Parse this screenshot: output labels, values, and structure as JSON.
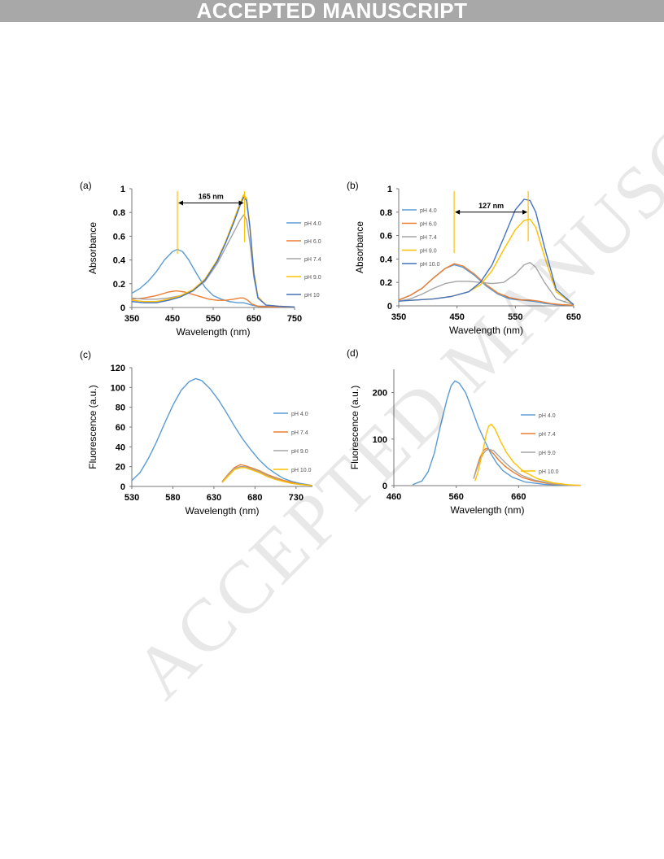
{
  "banner": "ACCEPTED MANUSCRIPT",
  "watermark": "ACCEPTED MANUSCRIPT",
  "colors": {
    "blue": "#5b9bd5",
    "orange": "#ed7d31",
    "gray": "#a5a5a5",
    "yellow": "#ffc000",
    "darkblue": "#4472c4"
  },
  "chart_data": [
    {
      "panel": "(a)",
      "type": "line",
      "xlabel": "Wavelength (nm)",
      "ylabel": "Absorbance",
      "xlim": [
        350,
        750
      ],
      "ylim": [
        0,
        1
      ],
      "xticks": [
        "350",
        "450",
        "550",
        "650",
        "750"
      ],
      "yticks": [
        "0",
        "0.2",
        "0.4",
        "0.6",
        "0.8",
        "1"
      ],
      "annotation": {
        "text": "165 nm",
        "x1": 462,
        "x2": 627,
        "y": 0.88
      },
      "legend": [
        "pH 4.0",
        "pH 6.0",
        "pH 7.4",
        "pH 9.0",
        "pH 10"
      ],
      "series": [
        {
          "name": "pH 4.0",
          "color": "blue",
          "x": [
            350,
            370,
            390,
            410,
            430,
            450,
            462,
            475,
            490,
            510,
            530,
            550,
            570,
            590,
            610,
            625,
            635,
            645,
            660,
            690,
            720,
            750
          ],
          "y": [
            0.12,
            0.16,
            0.22,
            0.3,
            0.4,
            0.47,
            0.49,
            0.47,
            0.4,
            0.28,
            0.17,
            0.1,
            0.07,
            0.05,
            0.04,
            0.04,
            0.03,
            0.02,
            0.01,
            0.01,
            0.005,
            0.005
          ]
        },
        {
          "name": "pH 6.0",
          "color": "orange",
          "x": [
            350,
            380,
            410,
            440,
            460,
            480,
            500,
            520,
            540,
            560,
            580,
            600,
            615,
            625,
            635,
            645,
            660,
            690,
            720,
            750
          ],
          "y": [
            0.07,
            0.08,
            0.1,
            0.13,
            0.14,
            0.13,
            0.11,
            0.09,
            0.07,
            0.06,
            0.06,
            0.07,
            0.08,
            0.08,
            0.06,
            0.03,
            0.01,
            0.005,
            0.005,
            0.005
          ]
        },
        {
          "name": "pH 7.4",
          "color": "gray",
          "x": [
            350,
            380,
            410,
            440,
            470,
            500,
            530,
            560,
            580,
            600,
            615,
            625,
            632,
            640,
            650,
            660,
            680,
            710,
            750
          ],
          "y": [
            0.08,
            0.07,
            0.07,
            0.08,
            0.1,
            0.14,
            0.22,
            0.37,
            0.5,
            0.63,
            0.73,
            0.78,
            0.74,
            0.55,
            0.25,
            0.08,
            0.02,
            0.01,
            0.005
          ]
        },
        {
          "name": "pH 9.0",
          "color": "yellow",
          "x": [
            350,
            380,
            410,
            440,
            470,
            500,
            530,
            560,
            580,
            600,
            615,
            625,
            632,
            640,
            650,
            660,
            680,
            710,
            750
          ],
          "y": [
            0.06,
            0.05,
            0.05,
            0.07,
            0.1,
            0.15,
            0.24,
            0.4,
            0.55,
            0.73,
            0.87,
            0.95,
            0.92,
            0.7,
            0.3,
            0.09,
            0.02,
            0.01,
            0.005
          ]
        },
        {
          "name": "pH 10",
          "color": "darkblue",
          "x": [
            350,
            380,
            410,
            440,
            470,
            500,
            530,
            560,
            580,
            600,
            615,
            625,
            632,
            640,
            650,
            660,
            680,
            710,
            750
          ],
          "y": [
            0.05,
            0.04,
            0.04,
            0.06,
            0.09,
            0.14,
            0.23,
            0.39,
            0.54,
            0.71,
            0.85,
            0.93,
            0.9,
            0.68,
            0.28,
            0.08,
            0.02,
            0.01,
            0.005
          ]
        }
      ]
    },
    {
      "panel": "(b)",
      "type": "line",
      "xlabel": "Wavelength (nm)",
      "ylabel": "Absorbance",
      "xlim": [
        350,
        650
      ],
      "ylim": [
        0,
        1
      ],
      "xticks": [
        "350",
        "450",
        "550",
        "650"
      ],
      "yticks": [
        "0",
        "0.2",
        "0.4",
        "0.6",
        "0.8",
        "1"
      ],
      "annotation": {
        "text": "127 nm",
        "x1": 445,
        "x2": 572,
        "y": 0.8
      },
      "legend": [
        "pH 4.0",
        "pH 6.0",
        "pH 7.4",
        "pH 9.0",
        "pH 10.0"
      ],
      "series": [
        {
          "name": "pH 4.0",
          "color": "blue",
          "x": [
            350,
            370,
            390,
            410,
            430,
            445,
            460,
            480,
            500,
            520,
            540,
            560,
            580,
            600,
            620,
            650
          ],
          "y": [
            0.05,
            0.09,
            0.15,
            0.24,
            0.32,
            0.35,
            0.33,
            0.26,
            0.17,
            0.1,
            0.06,
            0.05,
            0.04,
            0.02,
            0.01,
            0.005
          ]
        },
        {
          "name": "pH 6.0",
          "color": "orange",
          "x": [
            350,
            370,
            390,
            410,
            430,
            445,
            460,
            480,
            500,
            520,
            540,
            560,
            575,
            590,
            610,
            630,
            650
          ],
          "y": [
            0.05,
            0.09,
            0.15,
            0.24,
            0.32,
            0.36,
            0.34,
            0.27,
            0.18,
            0.11,
            0.07,
            0.05,
            0.05,
            0.04,
            0.02,
            0.01,
            0.005
          ]
        },
        {
          "name": "pH 7.4",
          "color": "gray",
          "x": [
            350,
            370,
            390,
            410,
            430,
            450,
            470,
            490,
            510,
            530,
            550,
            565,
            575,
            585,
            600,
            620,
            650
          ],
          "y": [
            0.04,
            0.06,
            0.1,
            0.15,
            0.19,
            0.21,
            0.21,
            0.2,
            0.19,
            0.2,
            0.27,
            0.35,
            0.37,
            0.33,
            0.2,
            0.06,
            0.01
          ]
        },
        {
          "name": "pH 9.0",
          "color": "yellow",
          "x": [
            350,
            380,
            410,
            440,
            470,
            490,
            510,
            530,
            550,
            565,
            575,
            585,
            600,
            620,
            650
          ],
          "y": [
            0.04,
            0.05,
            0.06,
            0.08,
            0.12,
            0.18,
            0.3,
            0.48,
            0.65,
            0.73,
            0.74,
            0.67,
            0.42,
            0.12,
            0.01
          ]
        },
        {
          "name": "pH 10.0",
          "color": "darkblue",
          "x": [
            350,
            380,
            410,
            440,
            470,
            490,
            510,
            530,
            550,
            565,
            575,
            585,
            600,
            620,
            650
          ],
          "y": [
            0.04,
            0.05,
            0.06,
            0.08,
            0.12,
            0.2,
            0.35,
            0.58,
            0.82,
            0.91,
            0.9,
            0.8,
            0.5,
            0.14,
            0.01
          ]
        }
      ]
    },
    {
      "panel": "(c)",
      "type": "line",
      "xlabel": "Wavelength (nm)",
      "ylabel": "Fluorescence (a.u.)",
      "xlim": [
        530,
        750
      ],
      "ylim": [
        0,
        120
      ],
      "xticks": [
        "530",
        "580",
        "630",
        "680",
        "730"
      ],
      "yticks": [
        "0",
        "20",
        "40",
        "60",
        "80",
        "100",
        "120"
      ],
      "legend": [
        "pH 4.0",
        "pH 7.4",
        "pH 9.0",
        "pH 10.0"
      ],
      "series": [
        {
          "name": "pH 4.0",
          "color": "blue",
          "x": [
            530,
            540,
            550,
            560,
            570,
            580,
            590,
            600,
            608,
            615,
            625,
            635,
            645,
            655,
            665,
            675,
            685,
            695,
            705,
            715,
            725,
            735,
            750
          ],
          "y": [
            6,
            14,
            28,
            45,
            64,
            82,
            97,
            106,
            109,
            107,
            99,
            88,
            75,
            61,
            48,
            37,
            27,
            19,
            13,
            8,
            5,
            3,
            1
          ]
        },
        {
          "name": "pH 7.4",
          "color": "orange",
          "x": [
            640,
            648,
            655,
            662,
            668,
            675,
            685,
            695,
            705,
            715,
            725,
            735,
            750
          ],
          "y": [
            5,
            13,
            19,
            22,
            21,
            19,
            16,
            12,
            9,
            6,
            4,
            2,
            1
          ]
        },
        {
          "name": "pH 9.0",
          "color": "gray",
          "x": [
            640,
            648,
            655,
            662,
            668,
            675,
            685,
            695,
            705,
            715,
            725,
            735,
            750
          ],
          "y": [
            4,
            12,
            18,
            20,
            20,
            18,
            15,
            11,
            8,
            5,
            3,
            2,
            1
          ]
        },
        {
          "name": "pH 10.0",
          "color": "yellow",
          "x": [
            640,
            648,
            655,
            662,
            668,
            675,
            685,
            695,
            705,
            715,
            725,
            735,
            750
          ],
          "y": [
            4,
            11,
            17,
            19,
            19,
            17,
            14,
            10,
            7,
            5,
            3,
            2,
            1
          ]
        }
      ]
    },
    {
      "panel": "(d)",
      "type": "line",
      "xlabel": "Wavelength (nm)",
      "ylabel": "Fluorescence (a.u.)",
      "xlim": [
        460,
        760
      ],
      "ylim": [
        0,
        250
      ],
      "xticks": [
        "460",
        "560",
        "660"
      ],
      "yticks": [
        "0",
        "100",
        "200"
      ],
      "legend": [
        "pH 4.0",
        "pH 7.4",
        "pH 9.0",
        "pH 10.0"
      ],
      "series": [
        {
          "name": "pH 4.0",
          "color": "blue",
          "x": [
            490,
            505,
            515,
            525,
            535,
            545,
            552,
            558,
            565,
            575,
            585,
            595,
            605,
            615,
            625,
            635,
            650,
            670,
            700,
            730,
            760
          ],
          "y": [
            2,
            10,
            30,
            70,
            130,
            185,
            215,
            225,
            220,
            200,
            165,
            128,
            98,
            70,
            48,
            32,
            18,
            8,
            3,
            1,
            0.5
          ]
        },
        {
          "name": "pH 7.4",
          "color": "orange",
          "x": [
            588,
            592,
            598,
            604,
            608,
            613,
            620,
            628,
            638,
            650,
            665,
            685,
            710,
            740,
            760
          ],
          "y": [
            15,
            35,
            60,
            76,
            80,
            77,
            68,
            55,
            42,
            30,
            18,
            10,
            4,
            1,
            0.5
          ]
        },
        {
          "name": "pH 9.0",
          "color": "gray",
          "x": [
            588,
            592,
            598,
            604,
            608,
            613,
            620,
            628,
            638,
            650,
            665,
            685,
            710,
            740,
            760
          ],
          "y": [
            15,
            32,
            55,
            70,
            76,
            78,
            75,
            64,
            50,
            36,
            22,
            12,
            5,
            1,
            0.5
          ]
        },
        {
          "name": "pH 10.0",
          "color": "yellow",
          "x": [
            590,
            595,
            602,
            608,
            612,
            616,
            622,
            630,
            640,
            652,
            668,
            690,
            715,
            740,
            760
          ],
          "y": [
            10,
            30,
            70,
            110,
            128,
            132,
            122,
            98,
            72,
            50,
            30,
            15,
            6,
            2,
            0.5
          ]
        }
      ]
    }
  ]
}
